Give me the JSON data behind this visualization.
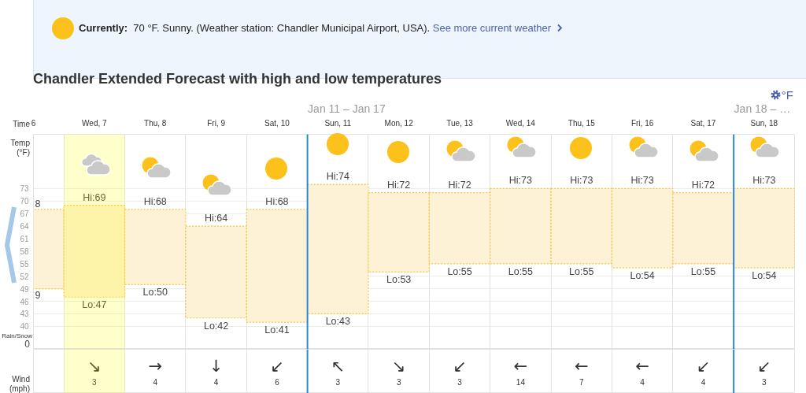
{
  "chart_data": [
    {
      "type": "bar",
      "title": "Chandler Extended Forecast with high and low temperatures",
      "xlabel": "Time",
      "ylabel": "Temp (°F)",
      "x": [
        "--01-06T12:00",
        "--01-07T12:00",
        "--01-08T12:00",
        "--01-09T12:00",
        "--01-10T12:00",
        "--01-11T12:00",
        "--01-12T12:00",
        "--01-13T12:00",
        "--01-14T12:00",
        "--01-15T12:00",
        "--01-16T12:00",
        "--01-17T12:00",
        "--01-18T12:00"
      ],
      "xlim": [
        "--01-06T12:00",
        "--01-19T00:00"
      ],
      "xticks": [
        {
          "value": "--01-06T12:00",
          "label": "6"
        },
        {
          "value": "--01-07T12:00",
          "label": "Wed, 7"
        },
        {
          "value": "--01-08T12:00",
          "label": "Thu, 8"
        },
        {
          "value": "--01-09T12:00",
          "label": "Fri, 9"
        },
        {
          "value": "--01-10T12:00",
          "label": "Sat, 10"
        },
        {
          "value": "--01-11T12:00",
          "label": "Sun, 11"
        },
        {
          "value": "--01-12T12:00",
          "label": "Mon, 12"
        },
        {
          "value": "--01-13T12:00",
          "label": "Tue, 13"
        },
        {
          "value": "--01-14T12:00",
          "label": "Wed, 14"
        },
        {
          "value": "--01-15T12:00",
          "label": "Thu, 15"
        },
        {
          "value": "--01-16T12:00",
          "label": "Fri, 16"
        },
        {
          "value": "--01-17T12:00",
          "label": "Sat, 17"
        },
        {
          "value": "--01-18T12:00",
          "label": "Sun, 18"
        }
      ],
      "base": [
        49,
        47,
        50,
        42,
        41,
        43,
        53,
        55,
        55,
        55,
        54,
        55,
        54
      ],
      "values": [
        19,
        22,
        18,
        22,
        27,
        31,
        19,
        17,
        18,
        18,
        19,
        17,
        19
      ],
      "color": "#fdf2d5",
      "ylim": [
        34.5,
        86
      ],
      "yticks": [
        40,
        43,
        46,
        49,
        52,
        55,
        58,
        61,
        64,
        67,
        70,
        73
      ],
      "grid": true,
      "bands": [
        {
          "axis": "x",
          "from": "--01-07T00:00",
          "to": "--01-08T00:00",
          "color": "#ffffcc"
        }
      ],
      "ref_lines": [
        {
          "axis": "x",
          "value": "--01-11T00:00",
          "label": "Jan 11 – Jan 17",
          "color": "#2b87d8"
        },
        {
          "axis": "x",
          "value": "--01-18T00:00",
          "label": "Jan 18 – …",
          "color": "#2b87d8"
        }
      ],
      "annotations": [
        "Currently:",
        "70 °F. Sunny. (Weather station: Chandler Municipal Airport, USA).",
        "See more current weather",
        "°F",
        "Rain/Snow",
        "0",
        {
          "text": "8",
          "x": "--01-06T12:00",
          "y": 68
        },
        {
          "text": "9",
          "x": "--01-06T12:00",
          "y": 49
        },
        {
          "text": "Hi:69",
          "x": "--01-07T12:00",
          "y": 69
        },
        {
          "text": "Lo:47",
          "x": "--01-07T12:00",
          "y": 47
        },
        {
          "text": "Hi:68",
          "x": "--01-08T12:00",
          "y": 68
        },
        {
          "text": "Lo:50",
          "x": "--01-08T12:00",
          "y": 50
        },
        {
          "text": "Hi:64",
          "x": "--01-09T12:00",
          "y": 64
        },
        {
          "text": "Lo:42",
          "x": "--01-09T12:00",
          "y": 42
        },
        {
          "text": "Hi:68",
          "x": "--01-10T12:00",
          "y": 68
        },
        {
          "text": "Lo:41",
          "x": "--01-10T12:00",
          "y": 41
        },
        {
          "text": "Hi:74",
          "x": "--01-11T12:00",
          "y": 74
        },
        {
          "text": "Lo:43",
          "x": "--01-11T12:00",
          "y": 43
        },
        {
          "text": "Hi:72",
          "x": "--01-12T12:00",
          "y": 72
        },
        {
          "text": "Lo:53",
          "x": "--01-12T12:00",
          "y": 53
        },
        {
          "text": "Hi:72",
          "x": "--01-13T12:00",
          "y": 72
        },
        {
          "text": "Lo:55",
          "x": "--01-13T12:00",
          "y": 55
        },
        {
          "text": "Hi:73",
          "x": "--01-14T12:00",
          "y": 73
        },
        {
          "text": "Lo:55",
          "x": "--01-14T12:00",
          "y": 55
        },
        {
          "text": "Hi:73",
          "x": "--01-15T12:00",
          "y": 73
        },
        {
          "text": "Lo:55",
          "x": "--01-15T12:00",
          "y": 55
        },
        {
          "text": "Hi:73",
          "x": "--01-16T12:00",
          "y": 73
        },
        {
          "text": "Lo:54",
          "x": "--01-16T12:00",
          "y": 54
        },
        {
          "text": "Hi:72",
          "x": "--01-17T12:00",
          "y": 72
        },
        {
          "text": "Lo:55",
          "x": "--01-17T12:00",
          "y": 55
        },
        {
          "text": "Hi:73",
          "x": "--01-18T12:00",
          "y": 73
        },
        {
          "text": "Lo:54",
          "x": "--01-18T12:00",
          "y": 54
        }
      ]
    },
    {
      "type": "other",
      "ylabel": "Wind (mph)",
      "categories": [
        null,
        null,
        null,
        null,
        null,
        null,
        null,
        null,
        null,
        null,
        null,
        null,
        null
      ],
      "values": [
        null,
        3,
        4,
        4,
        6,
        3,
        3,
        3,
        14,
        7,
        4,
        4,
        3
      ],
      "data_labels": true,
      "annotations": [
        "↘",
        "→",
        "↓",
        "↙",
        "↖",
        "↘",
        "↙",
        "←",
        "←",
        "←",
        "↙",
        "↙"
      ]
    }
  ]
}
